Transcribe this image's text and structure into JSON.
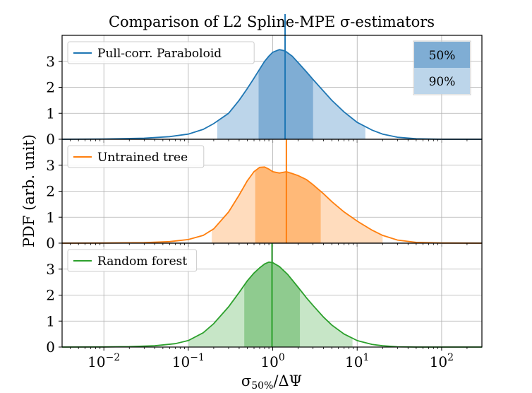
{
  "chart_data": {
    "type": "area",
    "title": "Comparison of L2 Spline-MPE σ-estimators",
    "xlabel": "σ50%/ΔΨ",
    "xlabel_main": "σ",
    "xlabel_sub": "50%",
    "xlabel_tail": "/ΔΨ",
    "ylabel": "PDF (arb. unit)",
    "xscale": "log",
    "xlim": [
      0.0032,
      300
    ],
    "ylim": [
      0,
      4
    ],
    "grid": true,
    "x_ticks": [
      {
        "value": 0.01,
        "base": "10",
        "exp": "−2"
      },
      {
        "value": 0.1,
        "base": "10",
        "exp": "−1"
      },
      {
        "value": 1,
        "base": "10",
        "exp": "0"
      },
      {
        "value": 10,
        "base": "10",
        "exp": "1"
      },
      {
        "value": 100,
        "base": "10",
        "exp": "2"
      }
    ],
    "y_ticks": [
      "0",
      "1",
      "2",
      "3"
    ],
    "band_legend": {
      "placement": "top-right",
      "items": [
        "50%",
        "90%"
      ]
    },
    "panels": [
      {
        "name": "Pull-corr. Paraboloid",
        "color": "#1f77b4",
        "band50_color": "#7fadd4",
        "band90_color": "#bcd5ea",
        "median": 1.4,
        "interval50": [
          0.68,
          3.0
        ],
        "interval90": [
          0.22,
          12.5
        ],
        "curve": [
          [
            0.0032,
            0.0
          ],
          [
            0.01,
            0.01
          ],
          [
            0.03,
            0.04
          ],
          [
            0.06,
            0.1
          ],
          [
            0.1,
            0.2
          ],
          [
            0.15,
            0.38
          ],
          [
            0.2,
            0.6
          ],
          [
            0.3,
            1.0
          ],
          [
            0.4,
            1.5
          ],
          [
            0.5,
            1.95
          ],
          [
            0.6,
            2.35
          ],
          [
            0.7,
            2.7
          ],
          [
            0.8,
            3.0
          ],
          [
            0.9,
            3.2
          ],
          [
            1.0,
            3.35
          ],
          [
            1.2,
            3.45
          ],
          [
            1.4,
            3.4
          ],
          [
            1.7,
            3.2
          ],
          [
            2.0,
            2.95
          ],
          [
            2.5,
            2.6
          ],
          [
            3.0,
            2.3
          ],
          [
            4.0,
            1.85
          ],
          [
            5.0,
            1.5
          ],
          [
            7.0,
            1.05
          ],
          [
            10.0,
            0.65
          ],
          [
            15.0,
            0.35
          ],
          [
            20.0,
            0.2
          ],
          [
            30.0,
            0.08
          ],
          [
            50.0,
            0.02
          ],
          [
            100.0,
            0.0
          ],
          [
            300.0,
            0.0
          ]
        ]
      },
      {
        "name": "Untrained tree",
        "color": "#ff7f0e",
        "band50_color": "#ffb978",
        "band90_color": "#ffdcbd",
        "median": 1.45,
        "interval50": [
          0.62,
          3.7
        ],
        "interval90": [
          0.19,
          20.0
        ],
        "curve": [
          [
            0.0032,
            0.0
          ],
          [
            0.01,
            0.005
          ],
          [
            0.03,
            0.02
          ],
          [
            0.06,
            0.06
          ],
          [
            0.1,
            0.14
          ],
          [
            0.15,
            0.3
          ],
          [
            0.2,
            0.55
          ],
          [
            0.3,
            1.2
          ],
          [
            0.4,
            1.85
          ],
          [
            0.5,
            2.4
          ],
          [
            0.6,
            2.75
          ],
          [
            0.7,
            2.92
          ],
          [
            0.8,
            2.93
          ],
          [
            0.9,
            2.85
          ],
          [
            1.0,
            2.75
          ],
          [
            1.2,
            2.7
          ],
          [
            1.45,
            2.75
          ],
          [
            1.7,
            2.68
          ],
          [
            2.0,
            2.6
          ],
          [
            2.5,
            2.45
          ],
          [
            3.0,
            2.25
          ],
          [
            4.0,
            1.9
          ],
          [
            5.0,
            1.6
          ],
          [
            7.0,
            1.2
          ],
          [
            10.0,
            0.85
          ],
          [
            15.0,
            0.5
          ],
          [
            20.0,
            0.3
          ],
          [
            30.0,
            0.12
          ],
          [
            50.0,
            0.03
          ],
          [
            100.0,
            0.005
          ],
          [
            300.0,
            0.0
          ]
        ]
      },
      {
        "name": "Random forest",
        "color": "#2ca02c",
        "band50_color": "#8fcb8f",
        "band90_color": "#c7e6c7",
        "median": 0.98,
        "interval50": [
          0.46,
          2.1
        ],
        "interval90": [
          0.1,
          8.8
        ],
        "curve": [
          [
            0.0032,
            0.0
          ],
          [
            0.01,
            0.005
          ],
          [
            0.02,
            0.015
          ],
          [
            0.04,
            0.05
          ],
          [
            0.07,
            0.13
          ],
          [
            0.1,
            0.25
          ],
          [
            0.15,
            0.55
          ],
          [
            0.2,
            0.9
          ],
          [
            0.3,
            1.55
          ],
          [
            0.4,
            2.1
          ],
          [
            0.5,
            2.55
          ],
          [
            0.6,
            2.85
          ],
          [
            0.7,
            3.05
          ],
          [
            0.8,
            3.2
          ],
          [
            0.9,
            3.27
          ],
          [
            1.0,
            3.25
          ],
          [
            1.2,
            3.1
          ],
          [
            1.5,
            2.8
          ],
          [
            2.0,
            2.3
          ],
          [
            2.5,
            1.9
          ],
          [
            3.0,
            1.6
          ],
          [
            4.0,
            1.15
          ],
          [
            5.0,
            0.85
          ],
          [
            7.0,
            0.5
          ],
          [
            10.0,
            0.25
          ],
          [
            15.0,
            0.1
          ],
          [
            20.0,
            0.05
          ],
          [
            30.0,
            0.01
          ],
          [
            50.0,
            0.0
          ],
          [
            300.0,
            0.0
          ]
        ]
      }
    ]
  }
}
